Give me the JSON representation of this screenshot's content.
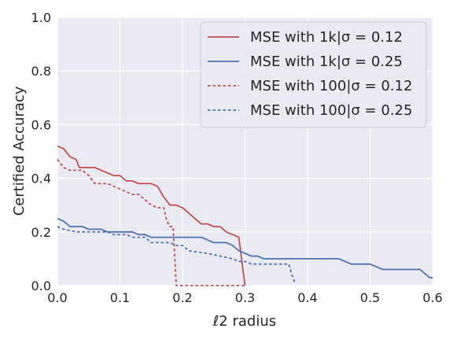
{
  "chart_data": {
    "type": "line",
    "title": "",
    "xlabel": "ℓ2 radius",
    "ylabel": "Certified Accuracy",
    "xlim": [
      0.0,
      0.6
    ],
    "ylim": [
      0.0,
      1.0
    ],
    "xticks": [
      "0.0",
      "0.1",
      "0.2",
      "0.3",
      "0.4",
      "0.5",
      "0.6"
    ],
    "yticks": [
      "0.0",
      "0.2",
      "0.4",
      "0.6",
      "0.8",
      "1.0"
    ],
    "grid": true,
    "legend_position": "top-right",
    "series": [
      {
        "name": "MSE with 1k|σ = 0.12",
        "color": "#c44e52",
        "dash": "solid",
        "points": [
          [
            0.0,
            0.52
          ],
          [
            0.01,
            0.51
          ],
          [
            0.02,
            0.48
          ],
          [
            0.03,
            0.47
          ],
          [
            0.035,
            0.44
          ],
          [
            0.06,
            0.44
          ],
          [
            0.07,
            0.43
          ],
          [
            0.08,
            0.42
          ],
          [
            0.09,
            0.41
          ],
          [
            0.1,
            0.41
          ],
          [
            0.11,
            0.39
          ],
          [
            0.12,
            0.39
          ],
          [
            0.13,
            0.38
          ],
          [
            0.15,
            0.38
          ],
          [
            0.16,
            0.37
          ],
          [
            0.165,
            0.35
          ],
          [
            0.17,
            0.33
          ],
          [
            0.18,
            0.3
          ],
          [
            0.19,
            0.3
          ],
          [
            0.2,
            0.29
          ],
          [
            0.21,
            0.27
          ],
          [
            0.22,
            0.25
          ],
          [
            0.23,
            0.23
          ],
          [
            0.24,
            0.23
          ],
          [
            0.25,
            0.22
          ],
          [
            0.26,
            0.22
          ],
          [
            0.27,
            0.2
          ],
          [
            0.28,
            0.19
          ],
          [
            0.29,
            0.18
          ],
          [
            0.3,
            0.0
          ]
        ]
      },
      {
        "name": "MSE with 1k|σ = 0.25",
        "color": "#4c72b0",
        "dash": "solid",
        "points": [
          [
            0.0,
            0.25
          ],
          [
            0.01,
            0.24
          ],
          [
            0.02,
            0.22
          ],
          [
            0.04,
            0.22
          ],
          [
            0.05,
            0.21
          ],
          [
            0.07,
            0.21
          ],
          [
            0.08,
            0.2
          ],
          [
            0.12,
            0.2
          ],
          [
            0.13,
            0.19
          ],
          [
            0.14,
            0.19
          ],
          [
            0.15,
            0.18
          ],
          [
            0.23,
            0.18
          ],
          [
            0.24,
            0.17
          ],
          [
            0.25,
            0.16
          ],
          [
            0.27,
            0.16
          ],
          [
            0.28,
            0.15
          ],
          [
            0.29,
            0.13
          ],
          [
            0.3,
            0.12
          ],
          [
            0.31,
            0.11
          ],
          [
            0.32,
            0.11
          ],
          [
            0.33,
            0.1
          ],
          [
            0.45,
            0.1
          ],
          [
            0.46,
            0.09
          ],
          [
            0.47,
            0.08
          ],
          [
            0.5,
            0.08
          ],
          [
            0.51,
            0.07
          ],
          [
            0.52,
            0.06
          ],
          [
            0.58,
            0.06
          ],
          [
            0.59,
            0.04
          ],
          [
            0.595,
            0.03
          ],
          [
            0.6,
            0.03
          ]
        ]
      },
      {
        "name": "MSE with 100|σ = 0.12",
        "color": "#c44e52",
        "dash": "dotted",
        "points": [
          [
            0.0,
            0.47
          ],
          [
            0.01,
            0.44
          ],
          [
            0.02,
            0.43
          ],
          [
            0.04,
            0.43
          ],
          [
            0.05,
            0.41
          ],
          [
            0.06,
            0.38
          ],
          [
            0.08,
            0.38
          ],
          [
            0.09,
            0.37
          ],
          [
            0.1,
            0.36
          ],
          [
            0.11,
            0.35
          ],
          [
            0.12,
            0.34
          ],
          [
            0.13,
            0.34
          ],
          [
            0.14,
            0.32
          ],
          [
            0.15,
            0.3
          ],
          [
            0.16,
            0.29
          ],
          [
            0.17,
            0.29
          ],
          [
            0.175,
            0.24
          ],
          [
            0.18,
            0.22
          ],
          [
            0.185,
            0.22
          ],
          [
            0.19,
            0.0
          ],
          [
            0.3,
            0.0
          ]
        ]
      },
      {
        "name": "MSE with 100|σ = 0.25",
        "color": "#4c72b0",
        "dash": "dotted",
        "points": [
          [
            0.0,
            0.22
          ],
          [
            0.01,
            0.21
          ],
          [
            0.03,
            0.2
          ],
          [
            0.08,
            0.2
          ],
          [
            0.09,
            0.19
          ],
          [
            0.11,
            0.19
          ],
          [
            0.12,
            0.18
          ],
          [
            0.14,
            0.18
          ],
          [
            0.15,
            0.16
          ],
          [
            0.18,
            0.16
          ],
          [
            0.19,
            0.15
          ],
          [
            0.2,
            0.15
          ],
          [
            0.21,
            0.13
          ],
          [
            0.24,
            0.12
          ],
          [
            0.26,
            0.11
          ],
          [
            0.28,
            0.1
          ],
          [
            0.29,
            0.09
          ],
          [
            0.3,
            0.09
          ],
          [
            0.31,
            0.08
          ],
          [
            0.37,
            0.08
          ],
          [
            0.375,
            0.04
          ],
          [
            0.38,
            0.01
          ]
        ]
      }
    ]
  }
}
